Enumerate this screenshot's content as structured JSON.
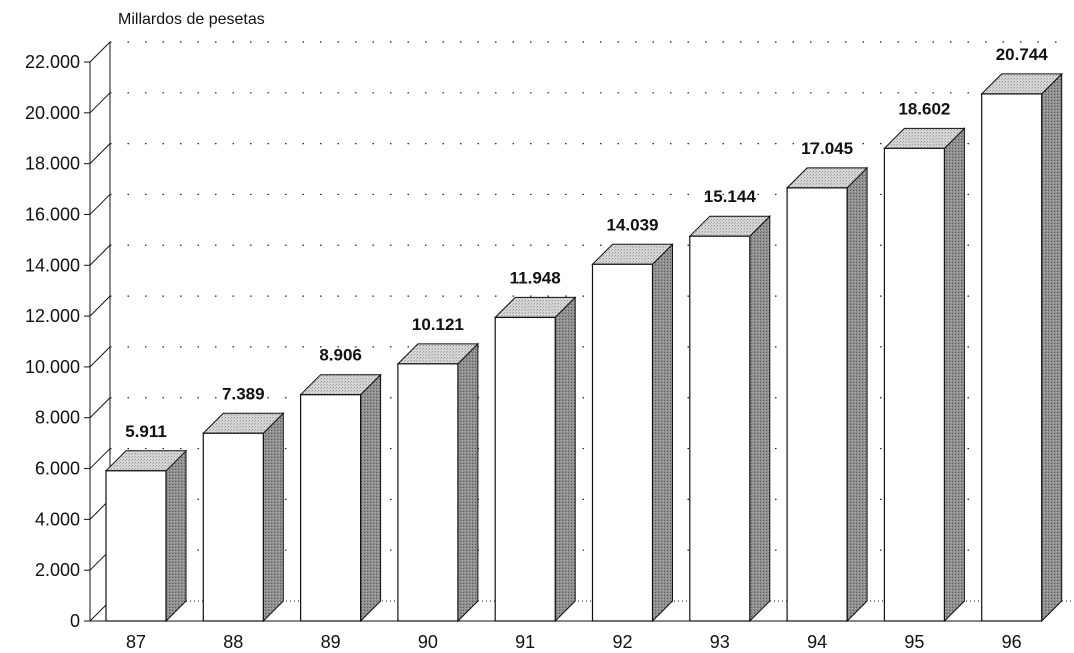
{
  "chart_data": {
    "type": "bar",
    "ylabel": "Millardos de pesetas",
    "categories": [
      "87",
      "88",
      "89",
      "90",
      "91",
      "92",
      "93",
      "94",
      "95",
      "96"
    ],
    "values": [
      5911,
      7389,
      8906,
      10121,
      11948,
      14039,
      15144,
      17045,
      18602,
      20744
    ],
    "value_labels": [
      "5.911",
      "7.389",
      "8.906",
      "10.121",
      "11.948",
      "14.039",
      "15.144",
      "17.045",
      "18.602",
      "20.744"
    ],
    "ylim": [
      0,
      22000
    ],
    "yticks": [
      0,
      2000,
      4000,
      6000,
      8000,
      10000,
      12000,
      14000,
      16000,
      18000,
      20000,
      22000
    ],
    "ytick_labels": [
      "0",
      "2.000",
      "4.000",
      "6.000",
      "8.000",
      "10.000",
      "12.000",
      "14.000",
      "16.000",
      "18.000",
      "20.000",
      "22.000"
    ],
    "grid": true,
    "style": "3d-bar",
    "colors": {
      "front": "#ffffff",
      "top": "#cfcfcf",
      "side": "#8a8a8a",
      "outline": "#111111"
    }
  }
}
